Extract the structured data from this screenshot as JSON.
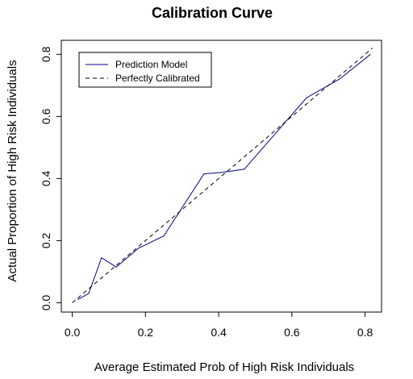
{
  "chart_data": {
    "type": "line",
    "title": "Calibration Curve",
    "xlabel": "Average Estimated Prob of High Risk Individuals",
    "ylabel": "Actual Proportion of High Risk Individuals",
    "xlim": [
      -0.03,
      0.845
    ],
    "ylim": [
      -0.03,
      0.845
    ],
    "xticks": [
      0.0,
      0.2,
      0.4,
      0.6,
      0.8
    ],
    "xtick_labels": [
      "0.0",
      "0.2",
      "0.4",
      "0.6",
      "0.8"
    ],
    "yticks": [
      0.0,
      0.2,
      0.4,
      0.6,
      0.8
    ],
    "ytick_labels": [
      "0.0",
      "0.2",
      "0.4",
      "0.6",
      "0.8"
    ],
    "grid": false,
    "legend_position": "top-left",
    "series": [
      {
        "name": "Prediction Model",
        "color": "#00008b",
        "style": "solid",
        "x": [
          0.015,
          0.045,
          0.08,
          0.12,
          0.18,
          0.25,
          0.36,
          0.41,
          0.47,
          0.64,
          0.73,
          0.815
        ],
        "y": [
          0.01,
          0.03,
          0.145,
          0.115,
          0.175,
          0.215,
          0.415,
          0.42,
          0.43,
          0.66,
          0.72,
          0.8
        ]
      },
      {
        "name": "Perfectly Calibrated",
        "color": "#000000",
        "style": "dashed",
        "x": [
          0.0,
          0.82
        ],
        "y": [
          0.0,
          0.82
        ]
      }
    ]
  }
}
